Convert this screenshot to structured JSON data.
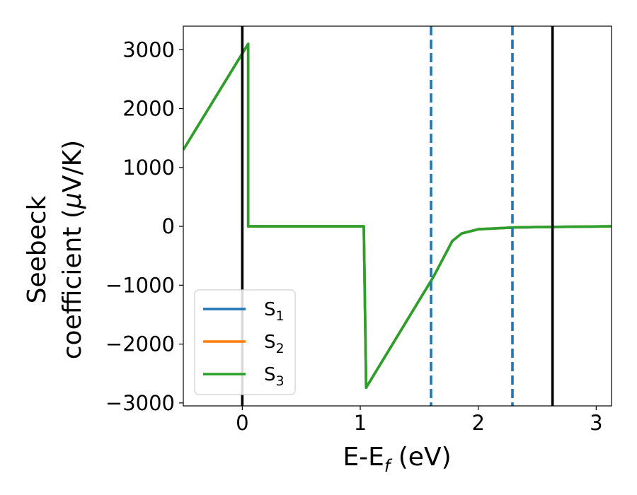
{
  "chart_data": {
    "type": "line",
    "title": "",
    "xlabel": "E-E",
    "xlabel_sub": "f",
    "xlabel_unit": " (eV)",
    "ylabel_line1": "Seebeck",
    "ylabel_line2": "coefficient  (",
    "ylabel_mu": "μ",
    "ylabel_unit": "V/K)",
    "xlim": [
      -0.5,
      3.13
    ],
    "ylim": [
      -3050,
      3400
    ],
    "xticks": [
      0,
      1,
      2,
      3
    ],
    "yticks": [
      -3000,
      -2000,
      -1000,
      0,
      1000,
      2000,
      3000
    ],
    "grid": false,
    "legend_position": "lower-left",
    "series": [
      {
        "name": "S",
        "sub": "1",
        "color": "#1f77b4",
        "x": [
          -0.5,
          0.05,
          0.05,
          1.03,
          1.05,
          1.62,
          1.78,
          1.86,
          2.0,
          2.3,
          2.6,
          3.13
        ],
        "y": [
          1300,
          3100,
          0,
          0,
          -2740,
          -860,
          -250,
          -120,
          -50,
          -20,
          -10,
          0
        ]
      },
      {
        "name": "S",
        "sub": "2",
        "color": "#ff7f0e",
        "x": [
          -0.5,
          0.05,
          0.05,
          1.03,
          1.05,
          1.62,
          1.78,
          1.86,
          2.0,
          2.3,
          2.6,
          3.13
        ],
        "y": [
          1300,
          3100,
          0,
          0,
          -2740,
          -860,
          -250,
          -120,
          -50,
          -20,
          -10,
          0
        ]
      },
      {
        "name": "S",
        "sub": "3",
        "color": "#2ca02c",
        "x": [
          -0.5,
          0.05,
          0.05,
          1.03,
          1.05,
          1.62,
          1.78,
          1.86,
          2.0,
          2.3,
          2.6,
          3.13
        ],
        "y": [
          1300,
          3100,
          0,
          0,
          -2740,
          -860,
          -250,
          -120,
          -50,
          -20,
          -10,
          0
        ]
      }
    ],
    "vlines": [
      {
        "x": 0.0,
        "color": "#000000",
        "style": "solid"
      },
      {
        "x": 2.63,
        "color": "#000000",
        "style": "solid"
      },
      {
        "x": 1.6,
        "color": "#1f77b4",
        "style": "dashed"
      },
      {
        "x": 2.29,
        "color": "#1f77b4",
        "style": "dashed"
      }
    ]
  }
}
